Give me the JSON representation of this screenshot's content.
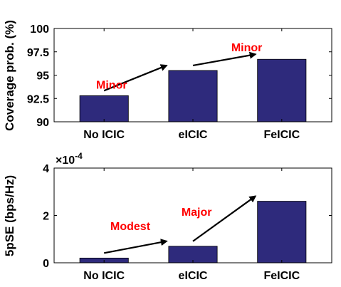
{
  "colors": {
    "bar": "#2e2a7c",
    "annotation": "#ff0000",
    "arrow": "#000000",
    "axis": "#000000"
  },
  "chart_data": [
    {
      "type": "bar",
      "categories": [
        "No ICIC",
        "eICIC",
        "FeICIC"
      ],
      "values": [
        92.8,
        95.5,
        96.7
      ],
      "ylabel": "Coverage prob. (%)",
      "ylim": [
        90,
        100
      ],
      "yticks": [
        "90",
        "92.5",
        "95",
        "97.5",
        "100"
      ],
      "ytick_values": [
        90,
        92.5,
        95,
        97.5,
        100
      ],
      "grid": false,
      "annotations": [
        {
          "text": "Minor",
          "from_category": 0,
          "to_category": 1
        },
        {
          "text": "Minor",
          "from_category": 1,
          "to_category": 2
        }
      ]
    },
    {
      "type": "bar",
      "categories": [
        "No ICIC",
        "eICIC",
        "FeICIC"
      ],
      "values": [
        0.2,
        0.7,
        2.6
      ],
      "ylabel": "5pSE (bps/Hz)",
      "ylim": [
        0,
        4
      ],
      "yticks": [
        "0",
        "2",
        "4"
      ],
      "ytick_values": [
        0,
        2,
        4
      ],
      "exponent_base": "×10",
      "exponent_power": "-4",
      "grid": false,
      "annotations": [
        {
          "text": "Modest",
          "from_category": 0,
          "to_category": 1
        },
        {
          "text": "Major",
          "from_category": 1,
          "to_category": 2
        }
      ]
    }
  ]
}
